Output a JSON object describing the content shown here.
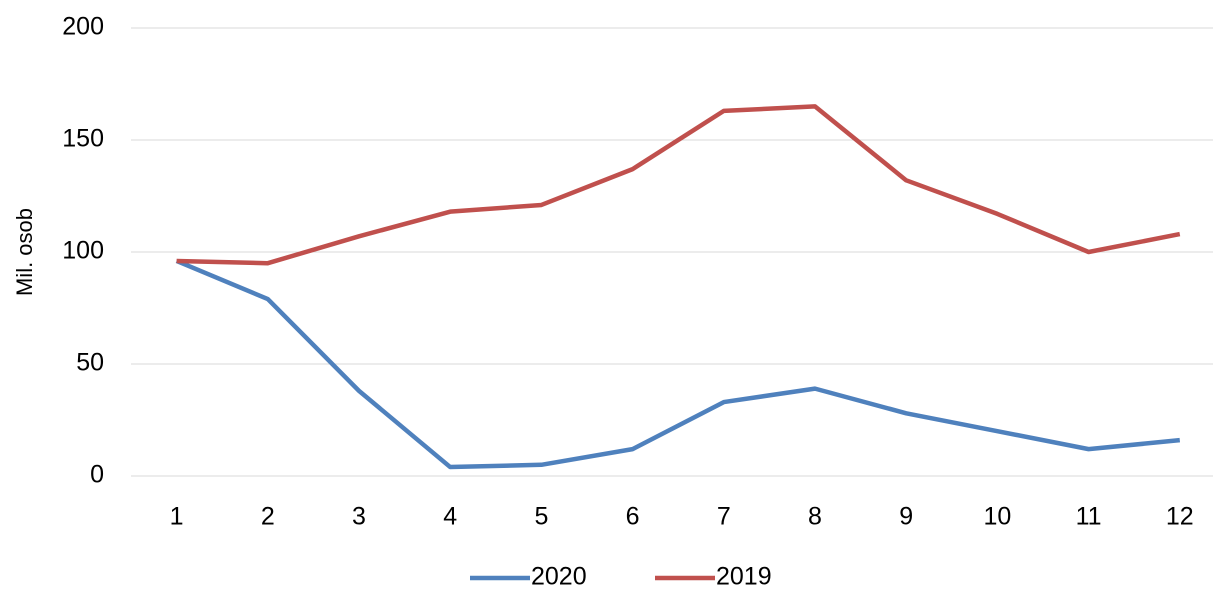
{
  "chart_data": {
    "type": "line",
    "y_label": "Mil. osob",
    "categories": [
      "1",
      "2",
      "3",
      "4",
      "5",
      "6",
      "7",
      "8",
      "9",
      "10",
      "11",
      "12"
    ],
    "series": [
      {
        "name": "2020",
        "color": "#4f81bd",
        "values": [
          96,
          79,
          38,
          4,
          5,
          12,
          33,
          39,
          28,
          20,
          12,
          16
        ]
      },
      {
        "name": "2019",
        "color": "#c0504d",
        "values": [
          96,
          95,
          107,
          118,
          121,
          137,
          163,
          165,
          132,
          117,
          100,
          108
        ]
      }
    ],
    "ylim": [
      0,
      200
    ],
    "yticks": [
      0,
      50,
      100,
      150,
      200
    ],
    "grid": true,
    "legend": "bottom"
  }
}
